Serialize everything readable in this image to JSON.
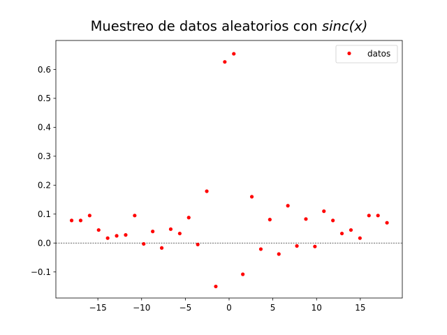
{
  "chart_data": {
    "type": "scatter",
    "title": "Muestreo de datos aleatorios con ",
    "title_math": "sinc(x)",
    "xlabel": "",
    "ylabel": "",
    "xlim": [
      -19.8,
      19.8
    ],
    "ylim": [
      -0.19,
      0.7
    ],
    "xticks": [
      -15,
      -10,
      -5,
      0,
      5,
      10,
      15
    ],
    "xtick_labels": [
      "−15",
      "−10",
      "−5",
      "0",
      "5",
      "10",
      "15"
    ],
    "yticks": [
      -0.1,
      0.0,
      0.1,
      0.2,
      0.3,
      0.4,
      0.5,
      0.6
    ],
    "ytick_labels": [
      "−0.1",
      "0.0",
      "0.1",
      "0.2",
      "0.3",
      "0.4",
      "0.5",
      "0.6"
    ],
    "grid": false,
    "reference_line": {
      "y": 0,
      "style": "dashed",
      "color": "#000000"
    },
    "legend_position": "top-right",
    "series": [
      {
        "name": "datos",
        "color": "#ff0000",
        "marker": "dot",
        "points": [
          [
            -18.0,
            0.078
          ],
          [
            -16.97,
            0.078
          ],
          [
            -15.94,
            0.095
          ],
          [
            -14.91,
            0.045
          ],
          [
            -13.88,
            0.017
          ],
          [
            -12.85,
            0.025
          ],
          [
            -11.82,
            0.028
          ],
          [
            -10.79,
            0.095
          ],
          [
            -9.76,
            -0.003
          ],
          [
            -8.73,
            0.04
          ],
          [
            -7.7,
            -0.017
          ],
          [
            -6.67,
            0.048
          ],
          [
            -5.64,
            0.033
          ],
          [
            -4.61,
            0.088
          ],
          [
            -3.58,
            -0.005
          ],
          [
            -2.55,
            0.179
          ],
          [
            -1.52,
            -0.15
          ],
          [
            -0.49,
            0.626
          ],
          [
            0.54,
            0.654
          ],
          [
            1.57,
            -0.108
          ],
          [
            2.6,
            0.16
          ],
          [
            3.63,
            -0.021
          ],
          [
            4.66,
            0.081
          ],
          [
            5.69,
            -0.038
          ],
          [
            6.72,
            0.129
          ],
          [
            7.75,
            -0.01
          ],
          [
            8.78,
            0.083
          ],
          [
            9.81,
            -0.012
          ],
          [
            10.84,
            0.11
          ],
          [
            11.87,
            0.078
          ],
          [
            12.9,
            0.033
          ],
          [
            13.93,
            0.045
          ],
          [
            14.96,
            0.017
          ],
          [
            15.99,
            0.095
          ],
          [
            17.02,
            0.095
          ],
          [
            18.05,
            0.07
          ]
        ]
      }
    ]
  }
}
